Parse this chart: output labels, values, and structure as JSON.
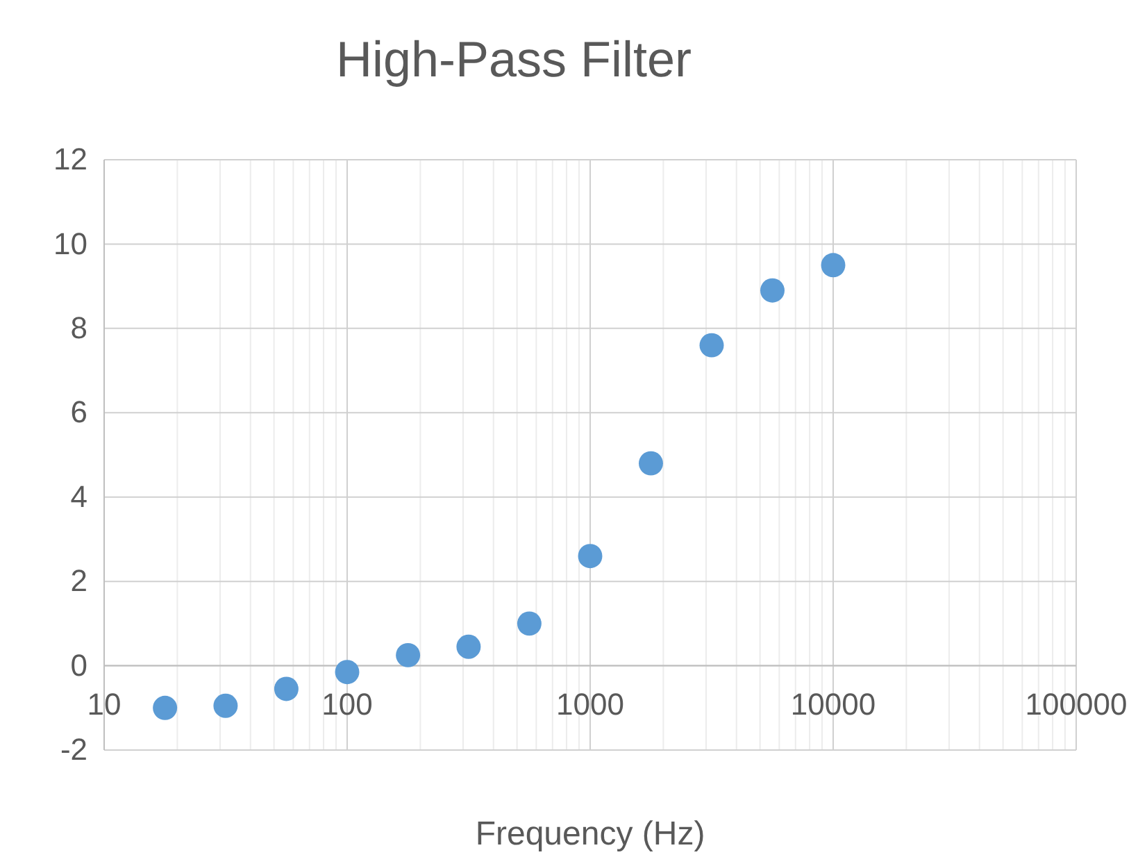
{
  "chart_data": {
    "type": "scatter",
    "title": "High-Pass Filter",
    "xlabel": "Frequency (Hz)",
    "x": [
      17.8,
      31.6,
      56.2,
      100,
      178,
      316,
      562,
      1000,
      1778,
      3162,
      5623,
      10000
    ],
    "series": [
      {
        "color": "#5b9bd5",
        "values": [
          -1.0,
          -0.95,
          -0.55,
          -0.15,
          0.25,
          0.45,
          1.0,
          2.6,
          4.8,
          7.6,
          8.9,
          9.5
        ]
      }
    ],
    "log": "x",
    "xlim": [
      10,
      100000
    ],
    "xticks": [
      10,
      100,
      1000,
      10000,
      100000
    ],
    "ylim": [
      -2,
      12
    ],
    "yticks": [
      -2,
      0,
      2,
      4,
      6,
      8,
      10,
      12
    ],
    "grid": true,
    "marker": "circle"
  }
}
